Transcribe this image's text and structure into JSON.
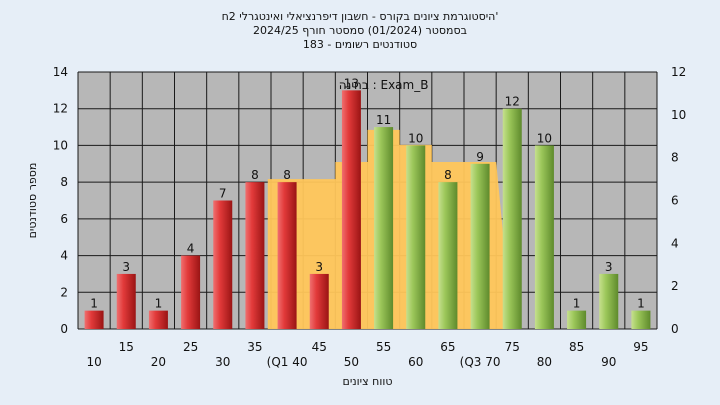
{
  "header": {
    "line1": "היסטוגרמת ציונים בקורס - חשבון דיפרנציאלי ואינטגרלי 2ח'",
    "line2": "בסמסטר  (01/2024)  סמסטר חורף  2024/25",
    "line3": "סטודנטים רשומים - 183"
  },
  "chart_data": {
    "type": "bar",
    "title": "היסטוגרמת ציונים בקורס - חשבון דיפרנציאלי ואינטגרלי 2ח'",
    "xlabel": "טווח ציונים",
    "ylabel": "מספר סטודנטים",
    "ylim": [
      0,
      14
    ],
    "y2lim": [
      0,
      12
    ],
    "yticks": [
      0,
      2,
      4,
      6,
      8,
      10,
      12,
      14
    ],
    "y2ticks": [
      0,
      2,
      4,
      6,
      8,
      10,
      12
    ],
    "grid": true,
    "categories": [
      "10",
      "15",
      "20",
      "25",
      "30",
      "35",
      "40",
      "45",
      "50",
      "55",
      "60",
      "65",
      "70",
      "75",
      "80",
      "85",
      "90",
      "95"
    ],
    "tick_labels": [
      "10",
      "15",
      "20",
      "25",
      "30",
      "35",
      "(Q1 40",
      "45",
      "50",
      "55",
      "60",
      "65",
      "(Q3 70",
      "75",
      "80",
      "85",
      "90",
      "95"
    ],
    "values": [
      1,
      3,
      1,
      4,
      7,
      8,
      8,
      3,
      13,
      11,
      10,
      8,
      9,
      12,
      10,
      1,
      3,
      1
    ],
    "colors": {
      "low": "#d42828",
      "high": "#98c45a",
      "comparison_area": "#ffc65a",
      "background": "#b7b7b7",
      "outer": "#e6eef7"
    },
    "low_group_count": 9,
    "comparison": {
      "label": "בחינה : Exam_B",
      "values": [
        0,
        0,
        0,
        0,
        0,
        0,
        7,
        7,
        7.8,
        9.3,
        8.6,
        7.8,
        7.8,
        0,
        0,
        0,
        0,
        0
      ]
    }
  }
}
